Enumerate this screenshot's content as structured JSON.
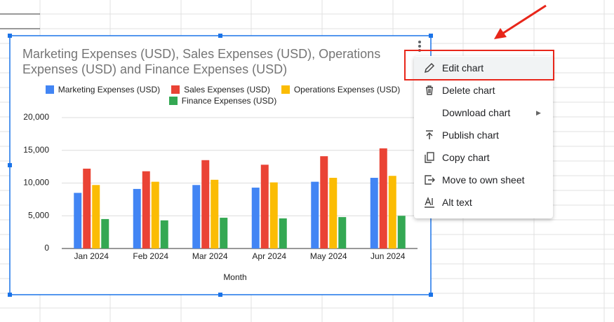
{
  "chart_data": {
    "type": "bar",
    "title": "Marketing Expenses (USD), Sales Expenses (USD), Operations Expenses (USD) and Finance Expenses (USD)",
    "x_label": "Month",
    "categories": [
      "Jan 2024",
      "Feb 2024",
      "Mar 2024",
      "Apr 2024",
      "May 2024",
      "Jun 2024"
    ],
    "series": [
      {
        "name": "Marketing Expenses (USD)",
        "color": "#4285f4",
        "values": [
          8500,
          9100,
          9700,
          9300,
          10200,
          10800
        ]
      },
      {
        "name": "Sales Expenses (USD)",
        "color": "#ea4335",
        "values": [
          12200,
          11800,
          13500,
          12800,
          14100,
          15300
        ]
      },
      {
        "name": "Operations Expenses (USD)",
        "color": "#fbbc04",
        "values": [
          9700,
          10200,
          10500,
          10100,
          10800,
          11100
        ]
      },
      {
        "name": "Finance Expenses (USD)",
        "color": "#34a853",
        "values": [
          4500,
          4300,
          4700,
          4600,
          4800,
          5000
        ]
      }
    ],
    "ylim": [
      0,
      20000
    ],
    "yticks": [
      0,
      {
        "value": 5000,
        "label": "5,000"
      },
      {
        "value": 10000,
        "label": "10,000"
      },
      {
        "value": 15000,
        "label": "15,000"
      },
      {
        "value": 20000,
        "label": "20,000"
      }
    ],
    "grid": true
  },
  "menu": {
    "items": [
      "Edit chart",
      "Delete chart",
      "Download chart",
      "Publish chart",
      "Copy chart",
      "Move to own sheet",
      "Alt text"
    ]
  }
}
